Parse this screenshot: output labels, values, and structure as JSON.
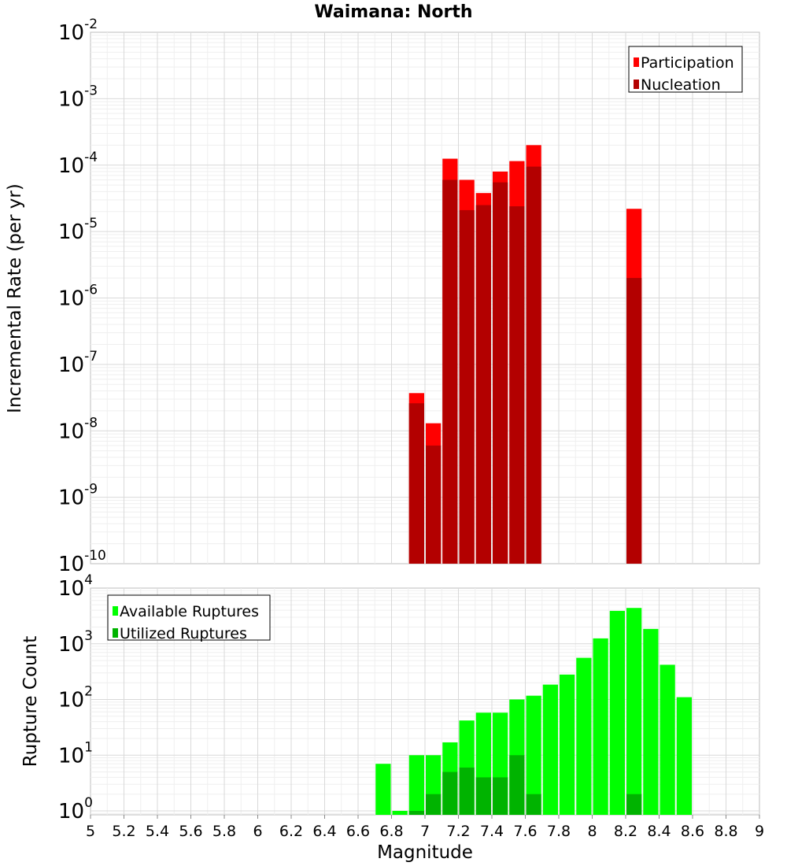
{
  "chart_data": [
    {
      "type": "bar",
      "title": "Waimana: North",
      "xlabel": "",
      "ylabel": "Incremental Rate (per yr)",
      "yscale": "log",
      "ylim": [
        1e-10,
        0.01
      ],
      "xlim": [
        5,
        9
      ],
      "grid": true,
      "legend_position": "top-right",
      "bar_width": 0.1,
      "ytick_bases": [
        "10",
        "10",
        "10",
        "10",
        "10",
        "10",
        "10",
        "10",
        "10"
      ],
      "ytick_exponents": [
        "-10",
        "-9",
        "-8",
        "-7",
        "-6",
        "-5",
        "-4",
        "-3",
        "-2"
      ],
      "series": [
        {
          "name": "Participation",
          "color": "#ff0000",
          "points": [
            [
              6.95,
              3.7e-08
            ],
            [
              7.05,
              1.3e-08
            ],
            [
              7.15,
              0.000125
            ],
            [
              7.25,
              6e-05
            ],
            [
              7.35,
              3.8e-05
            ],
            [
              7.45,
              8e-05
            ],
            [
              7.55,
              0.000115
            ],
            [
              7.65,
              0.0002
            ],
            [
              8.25,
              2.2e-05
            ]
          ]
        },
        {
          "name": "Nucleation",
          "color": "#b30000",
          "points": [
            [
              6.95,
              2.6e-08
            ],
            [
              7.05,
              6e-09
            ],
            [
              7.15,
              6e-05
            ],
            [
              7.25,
              2.1e-05
            ],
            [
              7.35,
              2.5e-05
            ],
            [
              7.45,
              5.5e-05
            ],
            [
              7.55,
              2.4e-05
            ],
            [
              7.65,
              9.5e-05
            ],
            [
              8.25,
              2e-06
            ]
          ]
        }
      ]
    },
    {
      "type": "bar",
      "title": "",
      "xlabel": "Magnitude",
      "ylabel": "Rupture Count",
      "yscale": "log",
      "ylim": [
        0.85,
        10000
      ],
      "xlim": [
        5,
        9
      ],
      "grid": true,
      "legend_position": "top-left",
      "bar_width": 0.1,
      "xticks": [
        "5",
        "5.2",
        "5.4",
        "5.6",
        "5.8",
        "6",
        "6.2",
        "6.4",
        "6.6",
        "6.8",
        "7",
        "7.2",
        "7.4",
        "7.6",
        "7.8",
        "8",
        "8.2",
        "8.4",
        "8.6",
        "8.8",
        "9"
      ],
      "ytick_bases": [
        "10",
        "10",
        "10",
        "10",
        "10"
      ],
      "ytick_exponents": [
        "0",
        "1",
        "2",
        "3",
        "4"
      ],
      "series": [
        {
          "name": "Available Ruptures",
          "color": "#00ff00",
          "points": [
            [
              6.75,
              7
            ],
            [
              6.85,
              1
            ],
            [
              6.95,
              10
            ],
            [
              7.05,
              10
            ],
            [
              7.15,
              17
            ],
            [
              7.25,
              42
            ],
            [
              7.35,
              58
            ],
            [
              7.45,
              58
            ],
            [
              7.55,
              100
            ],
            [
              7.65,
              117
            ],
            [
              7.75,
              185
            ],
            [
              7.85,
              280
            ],
            [
              7.95,
              560
            ],
            [
              8.05,
              1250
            ],
            [
              8.15,
              3900
            ],
            [
              8.25,
              4400
            ],
            [
              8.35,
              1850
            ],
            [
              8.45,
              420
            ],
            [
              8.55,
              110
            ]
          ]
        },
        {
          "name": "Utilized Ruptures",
          "color": "#00b300",
          "points": [
            [
              6.95,
              1
            ],
            [
              7.05,
              2
            ],
            [
              7.15,
              5
            ],
            [
              7.25,
              6
            ],
            [
              7.35,
              4
            ],
            [
              7.45,
              4
            ],
            [
              7.55,
              10
            ],
            [
              7.65,
              2
            ],
            [
              8.25,
              2
            ]
          ]
        }
      ]
    }
  ]
}
